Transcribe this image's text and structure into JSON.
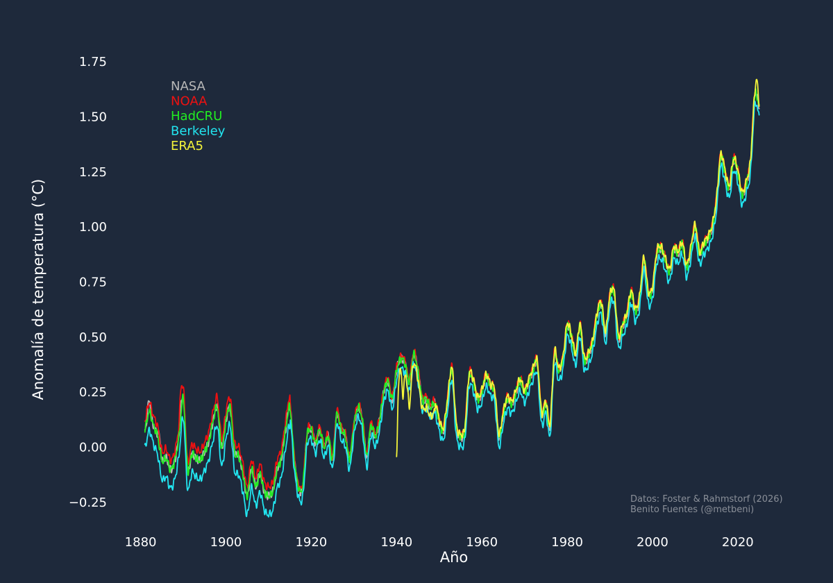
{
  "chart_data": {
    "type": "line",
    "title": "",
    "xlabel": "Año",
    "ylabel": "Anomalía de temperatura (°C)",
    "xlim": [
      1876,
      2028
    ],
    "ylim": [
      -0.38,
      1.88
    ],
    "x_ticks": [
      1880,
      1900,
      1920,
      1940,
      1960,
      1980,
      2000,
      2020
    ],
    "y_ticks": [
      -0.25,
      0.0,
      0.25,
      0.5,
      0.75,
      1.0,
      1.25,
      1.5,
      1.75
    ],
    "y_tick_labels": [
      "−0.25",
      "0.00",
      "0.25",
      "0.50",
      "0.75",
      "1.00",
      "1.25",
      "1.50",
      "1.75"
    ],
    "grid": false,
    "legend_position": "top-left",
    "credit": [
      "Datos: Foster & Rahmstorf (2026)",
      "Benito Fuentes (@metbeni)"
    ],
    "base": {
      "x": [
        1881,
        1882,
        1883,
        1884,
        1885,
        1886,
        1887,
        1888,
        1889,
        1890,
        1891,
        1892,
        1893,
        1894,
        1895,
        1896,
        1897,
        1898,
        1899,
        1900,
        1901,
        1902,
        1903,
        1904,
        1905,
        1906,
        1907,
        1908,
        1909,
        1910,
        1911,
        1912,
        1913,
        1914,
        1915,
        1916,
        1917,
        1918,
        1919,
        1920,
        1921,
        1922,
        1923,
        1924,
        1925,
        1926,
        1927,
        1928,
        1929,
        1930,
        1931,
        1932,
        1933,
        1934,
        1935,
        1936,
        1937,
        1938,
        1939,
        1940,
        1941,
        1942,
        1943,
        1944,
        1945,
        1946,
        1947,
        1948,
        1949,
        1950,
        1951,
        1952,
        1953,
        1954,
        1955,
        1956,
        1957,
        1958,
        1959,
        1960,
        1961,
        1962,
        1963,
        1964,
        1965,
        1966,
        1967,
        1968,
        1969,
        1970,
        1971,
        1972,
        1973,
        1974,
        1975,
        1976,
        1977,
        1978,
        1979,
        1980,
        1981,
        1982,
        1983,
        1984,
        1985,
        1986,
        1987,
        1988,
        1989,
        1990,
        1991,
        1992,
        1993,
        1994,
        1995,
        1996,
        1997,
        1998,
        1999,
        2000,
        2001,
        2002,
        2003,
        2004,
        2005,
        2006,
        2007,
        2008,
        2009,
        2010,
        2011,
        2012,
        2013,
        2014,
        2015,
        2016,
        2017,
        2018,
        2019,
        2020,
        2021,
        2022,
        2023,
        2024,
        2025
      ],
      "y": [
        0.08,
        0.16,
        0.1,
        0.05,
        -0.06,
        -0.05,
        -0.1,
        -0.06,
        0.05,
        0.22,
        -0.1,
        -0.03,
        -0.05,
        -0.06,
        -0.02,
        0.03,
        0.12,
        0.18,
        0.0,
        0.12,
        0.18,
        -0.02,
        -0.04,
        -0.12,
        -0.22,
        -0.1,
        -0.18,
        -0.12,
        -0.2,
        -0.22,
        -0.2,
        -0.1,
        -0.05,
        0.08,
        0.18,
        -0.05,
        -0.18,
        -0.18,
        0.05,
        0.08,
        0.02,
        0.08,
        0.0,
        0.05,
        -0.05,
        0.15,
        0.08,
        0.05,
        -0.05,
        0.1,
        0.18,
        0.12,
        -0.04,
        0.1,
        0.05,
        0.12,
        0.25,
        0.3,
        0.22,
        0.35,
        0.4,
        0.38,
        0.3,
        0.42,
        0.35,
        0.22,
        0.22,
        0.18,
        0.2,
        0.12,
        0.08,
        0.22,
        0.35,
        0.1,
        0.05,
        0.08,
        0.32,
        0.3,
        0.22,
        0.25,
        0.32,
        0.28,
        0.25,
        0.05,
        0.15,
        0.22,
        0.2,
        0.25,
        0.3,
        0.25,
        0.3,
        0.35,
        0.38,
        0.15,
        0.2,
        0.1,
        0.42,
        0.35,
        0.4,
        0.55,
        0.5,
        0.42,
        0.55,
        0.4,
        0.42,
        0.48,
        0.6,
        0.65,
        0.52,
        0.68,
        0.7,
        0.5,
        0.55,
        0.6,
        0.7,
        0.62,
        0.68,
        0.85,
        0.7,
        0.72,
        0.88,
        0.9,
        0.85,
        0.8,
        0.9,
        0.88,
        0.92,
        0.82,
        0.9,
        1.0,
        0.88,
        0.92,
        0.95,
        1.0,
        1.12,
        1.32,
        1.25,
        1.18,
        1.3,
        1.25,
        1.15,
        1.2,
        1.3,
        1.6,
        1.55
      ]
    },
    "series": [
      {
        "name": "NASA",
        "color": "#b8b8b8",
        "offset": 0.0,
        "start_year": 1881,
        "end_year": 2025,
        "spikes": [
          [
            1882,
            0.06
          ],
          [
            1884.4,
            0.05
          ],
          [
            1889.4,
            0.04
          ]
        ]
      },
      {
        "name": "NOAA",
        "color": "#ee1111",
        "offset": 0.012,
        "start_year": 1881,
        "end_year": 2024.3,
        "spikes": [
          [
            1889.4,
            0.08
          ]
        ]
      },
      {
        "name": "HadCRU",
        "color": "#22ee22",
        "offset": 0.0,
        "start_year": 1881,
        "end_year": 2025,
        "spikes": []
      },
      {
        "name": "Berkeley",
        "color": "#22e5f0",
        "offset": -0.045,
        "start_year": 1881,
        "end_year": 2025,
        "spikes": []
      },
      {
        "name": "ERA5",
        "color": "#f5f53a",
        "offset": 0.01,
        "start_year": 1940,
        "end_year": 2025,
        "spikes": [
          [
            1940,
            -0.35
          ],
          [
            1941.5,
            -0.12
          ],
          [
            1943,
            -0.08
          ],
          [
            2024.5,
            0.06
          ]
        ]
      }
    ]
  }
}
